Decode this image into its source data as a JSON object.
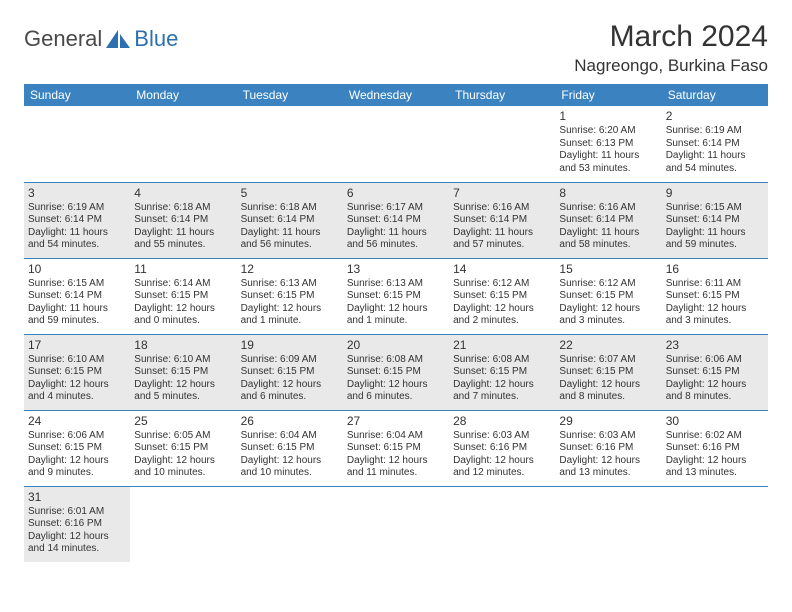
{
  "logo": {
    "part1": "General",
    "part2": "Blue"
  },
  "title": "March 2024",
  "location": "Nagreongo, Burkina Faso",
  "colors": {
    "header_bg": "#3b83c0",
    "header_text": "#ffffff",
    "alt_row_bg": "#e9e9e9",
    "border": "#3b83c0",
    "text": "#333333",
    "logo_gray": "#4a4a4a",
    "logo_blue": "#2e6fb0"
  },
  "day_headers": [
    "Sunday",
    "Monday",
    "Tuesday",
    "Wednesday",
    "Thursday",
    "Friday",
    "Saturday"
  ],
  "weeks": [
    [
      null,
      null,
      null,
      null,
      null,
      {
        "d": "1",
        "sr": "6:20 AM",
        "ss": "6:13 PM",
        "dl": "11 hours and 53 minutes."
      },
      {
        "d": "2",
        "sr": "6:19 AM",
        "ss": "6:14 PM",
        "dl": "11 hours and 54 minutes."
      }
    ],
    [
      {
        "d": "3",
        "sr": "6:19 AM",
        "ss": "6:14 PM",
        "dl": "11 hours and 54 minutes."
      },
      {
        "d": "4",
        "sr": "6:18 AM",
        "ss": "6:14 PM",
        "dl": "11 hours and 55 minutes."
      },
      {
        "d": "5",
        "sr": "6:18 AM",
        "ss": "6:14 PM",
        "dl": "11 hours and 56 minutes."
      },
      {
        "d": "6",
        "sr": "6:17 AM",
        "ss": "6:14 PM",
        "dl": "11 hours and 56 minutes."
      },
      {
        "d": "7",
        "sr": "6:16 AM",
        "ss": "6:14 PM",
        "dl": "11 hours and 57 minutes."
      },
      {
        "d": "8",
        "sr": "6:16 AM",
        "ss": "6:14 PM",
        "dl": "11 hours and 58 minutes."
      },
      {
        "d": "9",
        "sr": "6:15 AM",
        "ss": "6:14 PM",
        "dl": "11 hours and 59 minutes."
      }
    ],
    [
      {
        "d": "10",
        "sr": "6:15 AM",
        "ss": "6:14 PM",
        "dl": "11 hours and 59 minutes."
      },
      {
        "d": "11",
        "sr": "6:14 AM",
        "ss": "6:15 PM",
        "dl": "12 hours and 0 minutes."
      },
      {
        "d": "12",
        "sr": "6:13 AM",
        "ss": "6:15 PM",
        "dl": "12 hours and 1 minute."
      },
      {
        "d": "13",
        "sr": "6:13 AM",
        "ss": "6:15 PM",
        "dl": "12 hours and 1 minute."
      },
      {
        "d": "14",
        "sr": "6:12 AM",
        "ss": "6:15 PM",
        "dl": "12 hours and 2 minutes."
      },
      {
        "d": "15",
        "sr": "6:12 AM",
        "ss": "6:15 PM",
        "dl": "12 hours and 3 minutes."
      },
      {
        "d": "16",
        "sr": "6:11 AM",
        "ss": "6:15 PM",
        "dl": "12 hours and 3 minutes."
      }
    ],
    [
      {
        "d": "17",
        "sr": "6:10 AM",
        "ss": "6:15 PM",
        "dl": "12 hours and 4 minutes."
      },
      {
        "d": "18",
        "sr": "6:10 AM",
        "ss": "6:15 PM",
        "dl": "12 hours and 5 minutes."
      },
      {
        "d": "19",
        "sr": "6:09 AM",
        "ss": "6:15 PM",
        "dl": "12 hours and 6 minutes."
      },
      {
        "d": "20",
        "sr": "6:08 AM",
        "ss": "6:15 PM",
        "dl": "12 hours and 6 minutes."
      },
      {
        "d": "21",
        "sr": "6:08 AM",
        "ss": "6:15 PM",
        "dl": "12 hours and 7 minutes."
      },
      {
        "d": "22",
        "sr": "6:07 AM",
        "ss": "6:15 PM",
        "dl": "12 hours and 8 minutes."
      },
      {
        "d": "23",
        "sr": "6:06 AM",
        "ss": "6:15 PM",
        "dl": "12 hours and 8 minutes."
      }
    ],
    [
      {
        "d": "24",
        "sr": "6:06 AM",
        "ss": "6:15 PM",
        "dl": "12 hours and 9 minutes."
      },
      {
        "d": "25",
        "sr": "6:05 AM",
        "ss": "6:15 PM",
        "dl": "12 hours and 10 minutes."
      },
      {
        "d": "26",
        "sr": "6:04 AM",
        "ss": "6:15 PM",
        "dl": "12 hours and 10 minutes."
      },
      {
        "d": "27",
        "sr": "6:04 AM",
        "ss": "6:15 PM",
        "dl": "12 hours and 11 minutes."
      },
      {
        "d": "28",
        "sr": "6:03 AM",
        "ss": "6:16 PM",
        "dl": "12 hours and 12 minutes."
      },
      {
        "d": "29",
        "sr": "6:03 AM",
        "ss": "6:16 PM",
        "dl": "12 hours and 13 minutes."
      },
      {
        "d": "30",
        "sr": "6:02 AM",
        "ss": "6:16 PM",
        "dl": "12 hours and 13 minutes."
      }
    ],
    [
      {
        "d": "31",
        "sr": "6:01 AM",
        "ss": "6:16 PM",
        "dl": "12 hours and 14 minutes."
      },
      null,
      null,
      null,
      null,
      null,
      null
    ]
  ],
  "labels": {
    "sunrise": "Sunrise:",
    "sunset": "Sunset:",
    "daylight": "Daylight:"
  }
}
